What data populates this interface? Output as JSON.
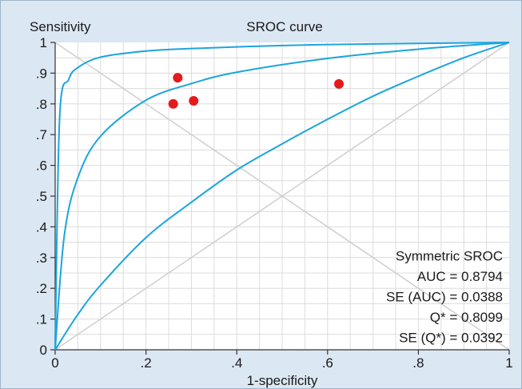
{
  "chart_data": {
    "type": "line",
    "title": "SROC curve",
    "ylabel": "Sensitivity",
    "xlabel": "1-specificity",
    "xlim": [
      0,
      1
    ],
    "ylim": [
      0,
      1
    ],
    "x_ticks": [
      0,
      0.2,
      0.4,
      0.6,
      0.8,
      1
    ],
    "x_tick_labels": [
      "0",
      ".2",
      ".4",
      ".6",
      ".8",
      "1"
    ],
    "y_ticks": [
      0,
      0.1,
      0.2,
      0.3,
      0.4,
      0.5,
      0.6,
      0.7,
      0.8,
      0.9,
      1
    ],
    "y_tick_labels": [
      "0",
      ".1",
      ".2",
      ".3",
      ".4",
      ".5",
      ".6",
      ".7",
      ".8",
      ".9",
      "1"
    ],
    "grid": true,
    "series": [
      {
        "x": [
          0,
          0.01,
          0.03,
          0.05,
          0.1,
          0.2,
          0.3,
          0.5,
          0.7,
          1.0
        ],
        "y": [
          0,
          0.76,
          0.88,
          0.918,
          0.952,
          0.972,
          0.98,
          0.99,
          0.995,
          1.0
        ],
        "color": "#1ba5dc"
      },
      {
        "x": [
          0,
          0.02,
          0.05,
          0.1,
          0.2,
          0.3,
          0.4,
          0.6,
          0.8,
          1.0
        ],
        "y": [
          0,
          0.37,
          0.56,
          0.695,
          0.812,
          0.866,
          0.903,
          0.948,
          0.978,
          1.0
        ],
        "color": "#1ba5dc"
      },
      {
        "x": [
          0,
          0.05,
          0.1,
          0.2,
          0.3,
          0.4,
          0.5,
          0.6,
          0.7,
          0.8,
          0.9,
          1.0
        ],
        "y": [
          0,
          0.115,
          0.21,
          0.365,
          0.48,
          0.585,
          0.67,
          0.75,
          0.825,
          0.89,
          0.95,
          1.0
        ],
        "color": "#1ba5dc"
      },
      {
        "x": [
          0.26,
          0.27,
          0.305,
          0.625
        ],
        "y": [
          0.8,
          0.885,
          0.81,
          0.865
        ],
        "color": "#e41a1c",
        "mode": "markers"
      }
    ],
    "annotations": [
      "Symmetric SROC",
      "AUC = 0.8794",
      "SE (AUC) = 0.0388",
      "Q* = 0.8099",
      "SE (Q*) = 0.0392"
    ],
    "reference_lines": [
      {
        "from": [
          0,
          0
        ],
        "to": [
          1,
          1
        ]
      },
      {
        "from": [
          0,
          1
        ],
        "to": [
          1,
          0
        ]
      }
    ],
    "colors": {
      "frame_bg": "#dbe7f2",
      "plot_bg": "#ffffff",
      "grid": "#dcdcdc",
      "curve": "#1ba5dc",
      "point": "#e41a1c",
      "text": "#1a1a1a"
    }
  }
}
